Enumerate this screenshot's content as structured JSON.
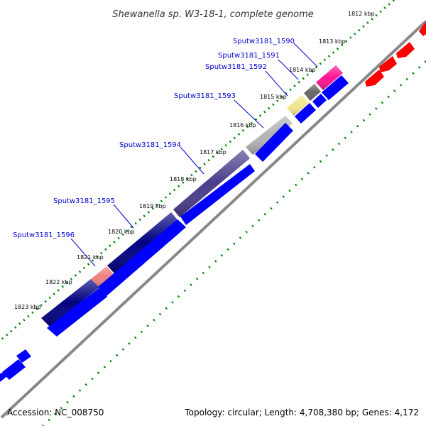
{
  "title": "Shewanella sp. W3-18-1, complete genome",
  "footer": {
    "accession": "Accession: NC_008750",
    "stats": "Topology: circular; Length: 4,708,380 bp; Genes: 4,172"
  },
  "ticks": [
    "1812 kbp",
    "1813 kbp",
    "1814 kbp",
    "1815 kbp",
    "1816 kbp",
    "1817 kbp",
    "1818 kbp",
    "1819 kbp",
    "1820 kbp",
    "1821 kbp",
    "1822 kbp",
    "1823 kbp"
  ],
  "genes": [
    {
      "label": "Sputw3181_1590",
      "color": "#ff1493"
    },
    {
      "label": "Sputw3181_1591",
      "color": "#666666"
    },
    {
      "label": "Sputw3181_1592",
      "color": "#f0e68c"
    },
    {
      "label": "Sputw3181_1593",
      "color": "#b3b3b3"
    },
    {
      "label": "Sputw3181_1594",
      "color": "#483d8b"
    },
    {
      "label": "Sputw3181_1595",
      "color": "#000080"
    },
    {
      "label": "Sputw3181_1596",
      "color": "#f08080"
    }
  ],
  "colors": {
    "forward_strand": "#0000ff",
    "reverse_strand": "#ff0000",
    "backbone": "#808080",
    "gc_dots": "#008000",
    "label_text": "#0000cc"
  }
}
